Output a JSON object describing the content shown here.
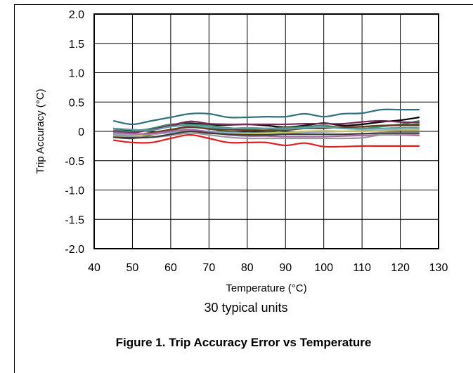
{
  "chart_data": {
    "type": "line",
    "xlabel": "Temperature (°C)",
    "ylabel": "Trip Accuracy (°C)",
    "xlim": [
      40,
      130
    ],
    "ylim": [
      -2.0,
      2.0
    ],
    "xticks": [
      "40",
      "50",
      "60",
      "70",
      "80",
      "90",
      "100",
      "110",
      "120",
      "130"
    ],
    "yticks": [
      "2.0",
      "1.5",
      "1.0",
      "0.5",
      "0",
      "-0.5",
      "-1.0",
      "-1.5",
      "-2.0"
    ],
    "grid": true,
    "annotation": "30 typical units",
    "x": [
      45,
      50,
      55,
      60,
      65,
      70,
      75,
      80,
      85,
      90,
      95,
      100,
      105,
      110,
      115,
      120,
      125
    ],
    "series": [
      {
        "color": "#2f6f7f",
        "values": [
          0.18,
          0.12,
          0.18,
          0.24,
          0.3,
          0.3,
          0.24,
          0.24,
          0.25,
          0.25,
          0.3,
          0.25,
          0.3,
          0.31,
          0.37,
          0.37,
          0.37
        ]
      },
      {
        "color": "#000000",
        "values": [
          0.05,
          0.02,
          0.04,
          0.1,
          0.14,
          0.11,
          0.11,
          0.12,
          0.1,
          0.07,
          0.1,
          0.14,
          0.1,
          0.12,
          0.16,
          0.19,
          0.24
        ]
      },
      {
        "color": "#4a8a6a",
        "values": [
          0.02,
          0.0,
          0.05,
          0.12,
          0.12,
          0.1,
          0.06,
          0.04,
          0.05,
          0.06,
          0.08,
          0.1,
          0.06,
          0.05,
          0.08,
          0.12,
          0.18
        ]
      },
      {
        "color": "#7a2a5a",
        "values": [
          0.0,
          -0.02,
          0.03,
          0.1,
          0.17,
          0.13,
          0.12,
          0.12,
          0.12,
          0.12,
          0.13,
          0.13,
          0.13,
          0.16,
          0.18,
          0.16,
          0.15
        ]
      },
      {
        "color": "#3a5a2a",
        "values": [
          -0.1,
          -0.12,
          -0.06,
          0.02,
          0.07,
          0.04,
          0.0,
          -0.02,
          -0.01,
          0.02,
          0.05,
          0.07,
          0.07,
          0.08,
          0.1,
          0.11,
          0.12
        ]
      },
      {
        "color": "#6b3a20",
        "values": [
          -0.05,
          -0.06,
          -0.02,
          0.03,
          0.08,
          0.05,
          0.03,
          0.02,
          0.02,
          0.03,
          0.05,
          0.05,
          0.07,
          0.08,
          0.1,
          0.1,
          0.1
        ]
      },
      {
        "color": "#5aa0a8",
        "values": [
          0.05,
          0.03,
          0.02,
          0.08,
          0.1,
          0.07,
          0.05,
          0.06,
          0.05,
          0.04,
          0.06,
          0.07,
          0.05,
          0.04,
          0.05,
          0.06,
          0.06
        ]
      },
      {
        "color": "#8aa8c8",
        "values": [
          -0.04,
          -0.06,
          -0.05,
          -0.02,
          0.02,
          0.0,
          -0.02,
          -0.03,
          -0.03,
          -0.03,
          -0.02,
          -0.01,
          0.0,
          0.01,
          0.02,
          0.03,
          0.03
        ]
      },
      {
        "color": "#c8c060",
        "values": [
          -0.08,
          -0.08,
          -0.05,
          0.0,
          0.02,
          -0.02,
          -0.04,
          -0.04,
          -0.03,
          -0.02,
          0.0,
          0.01,
          0.0,
          0.0,
          0.01,
          0.02,
          0.02
        ]
      },
      {
        "color": "#a868a8",
        "values": [
          -0.02,
          -0.04,
          -0.04,
          0.0,
          0.03,
          -0.01,
          -0.06,
          -0.08,
          -0.08,
          -0.09,
          -0.09,
          -0.09,
          -0.08,
          -0.07,
          -0.06,
          -0.06,
          -0.07
        ]
      },
      {
        "color": "#9a9a9a",
        "values": [
          -0.06,
          -0.09,
          -0.1,
          -0.07,
          -0.03,
          -0.06,
          -0.1,
          -0.12,
          -0.12,
          -0.12,
          -0.12,
          -0.12,
          -0.12,
          -0.11,
          -0.06,
          -0.05,
          -0.04
        ]
      },
      {
        "color": "#3a3a3a",
        "values": [
          -0.1,
          -0.11,
          -0.1,
          -0.05,
          0.0,
          -0.03,
          -0.05,
          -0.06,
          -0.06,
          -0.05,
          -0.05,
          -0.05,
          -0.05,
          -0.04,
          -0.03,
          -0.03,
          -0.03
        ]
      },
      {
        "color": "#e02020",
        "values": [
          -0.15,
          -0.19,
          -0.19,
          -0.12,
          -0.06,
          -0.12,
          -0.19,
          -0.19,
          -0.19,
          -0.24,
          -0.2,
          -0.26,
          -0.26,
          -0.25,
          -0.25,
          -0.25,
          -0.25
        ]
      }
    ]
  },
  "caption": "Figure 1. Trip Accuracy Error vs Temperature"
}
